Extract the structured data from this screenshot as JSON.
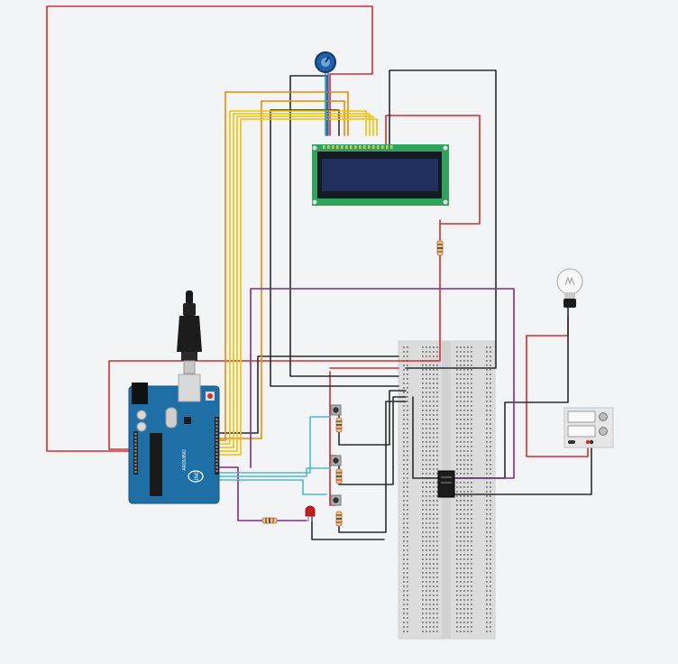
{
  "diagram": {
    "components": [
      {
        "id": "arduino",
        "type": "Arduino Uno",
        "brand_text": "UNO",
        "model_text": "ARDUINO"
      },
      {
        "id": "usb_cable",
        "type": "USB cable"
      },
      {
        "id": "lcd",
        "type": "LCD 16x2"
      },
      {
        "id": "pot",
        "type": "Potentiometer"
      },
      {
        "id": "breadboard",
        "type": "Breadboard"
      },
      {
        "id": "relay",
        "type": "Relay"
      },
      {
        "id": "bulb",
        "type": "Light bulb"
      },
      {
        "id": "power_supply",
        "type": "Power supply"
      },
      {
        "id": "led",
        "type": "LED",
        "color": "red"
      },
      {
        "id": "button_1",
        "type": "Pushbutton"
      },
      {
        "id": "button_2",
        "type": "Pushbutton"
      },
      {
        "id": "button_3",
        "type": "Pushbutton"
      },
      {
        "id": "resistor_lcd",
        "type": "Resistor"
      },
      {
        "id": "resistor_led",
        "type": "Resistor"
      },
      {
        "id": "resistor_btn_1",
        "type": "Resistor"
      },
      {
        "id": "resistor_btn_2",
        "type": "Resistor"
      },
      {
        "id": "resistor_btn_3",
        "type": "Resistor"
      }
    ],
    "wire_colors": {
      "power": "#d32f2f",
      "ground": "#2b2b2b",
      "lcd_data": "#f2c200",
      "lcd_ctrl": "#f08a00",
      "button_signal": "#4fb8d0",
      "led_signal": "#7b2d8e",
      "pot_signal": "#00a3c4"
    }
  }
}
